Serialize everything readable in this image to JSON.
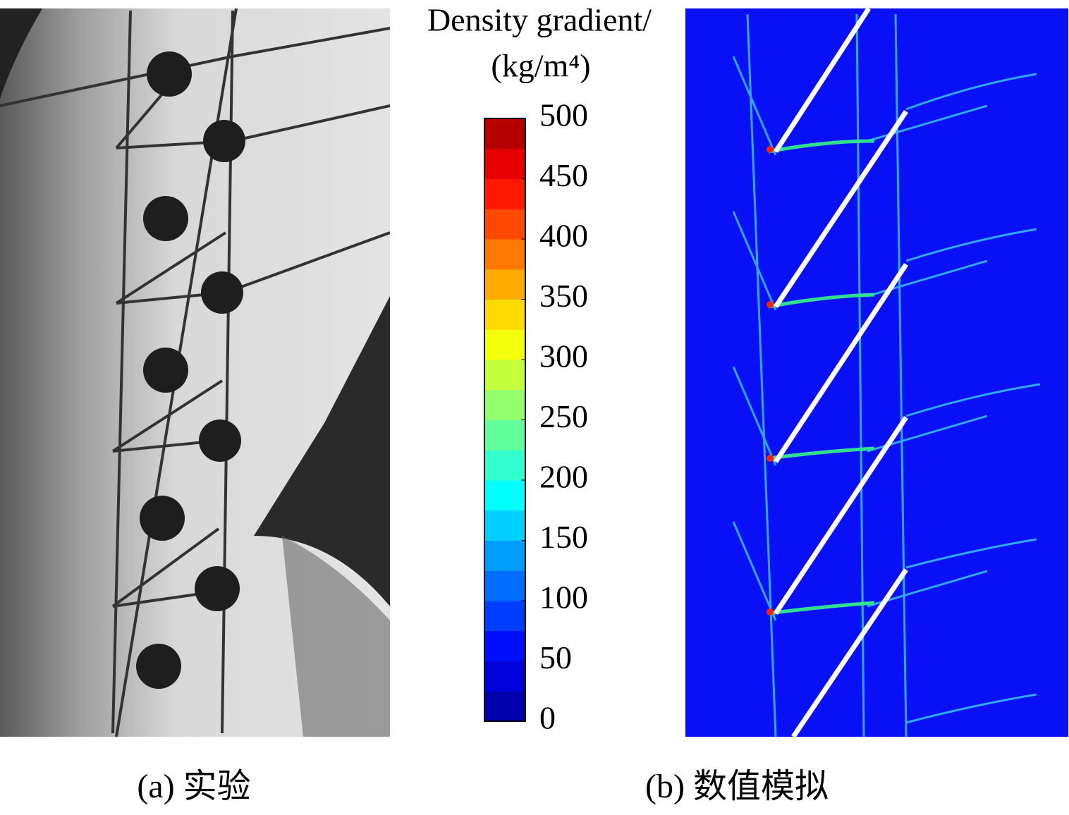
{
  "colorbar": {
    "title": [
      "Density gradient/",
      "(kg/m⁴)"
    ],
    "ticks": [
      0,
      50,
      100,
      150,
      200,
      250,
      300,
      350,
      400,
      450,
      500
    ]
  },
  "captions": [
    "(a) 实验",
    "(b) 数值模拟"
  ]
}
